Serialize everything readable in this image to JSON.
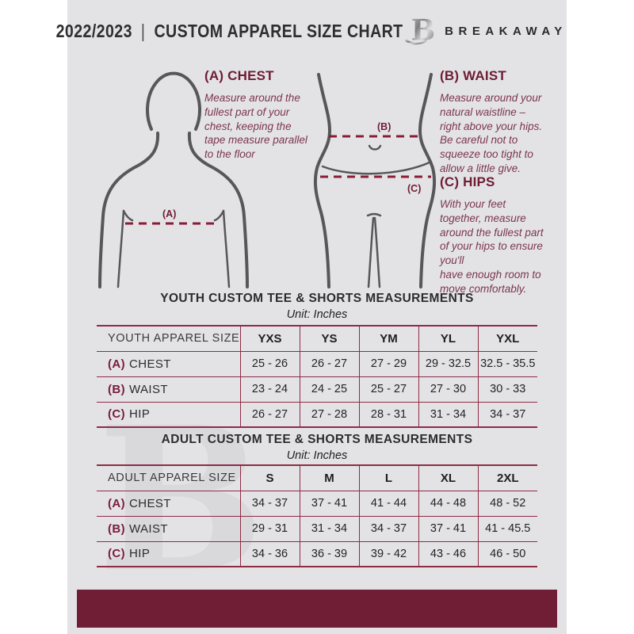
{
  "header": {
    "season": "2022/2023",
    "separator": "|",
    "title": "CUSTOM APPAREL SIZE CHART",
    "logo_letter": "B",
    "brand": "BREAKAWAY"
  },
  "diagrams": {
    "chest_label": "(A)",
    "waist_label": "(B)",
    "hip_label": "(C)"
  },
  "instructions": [
    {
      "heading": "(A) CHEST",
      "body": "Measure around the\nfullest part of your\nchest, keeping the\ntape measure parallel\nto the floor"
    },
    {
      "heading": "(B) WAIST",
      "body": "Measure around your\nnatural waistline –\nright above your hips.\nBe careful not to\nsqueeze too tight to\nallow a little give."
    },
    {
      "heading": "(C) HIPS",
      "body": "With your feet\ntogether, measure\naround the fullest part\nof your hips to ensure\nyou'll\nhave enough room to\nmove comfortably."
    }
  ],
  "youth": {
    "title": "YOUTH CUSTOM TEE & SHORTS MEASUREMENTS",
    "unit": "Unit: Inches",
    "table": {
      "header": "YOUTH APPAREL SIZE",
      "sizes": [
        "YXS",
        "YS",
        "YM",
        "YL",
        "YXL"
      ],
      "rows": [
        {
          "key": "(A)",
          "label": "CHEST",
          "values": [
            "25 - 26",
            "26 - 27",
            "27 - 29",
            "29 - 32.5",
            "32.5 - 35.5"
          ]
        },
        {
          "key": "(B)",
          "label": "WAIST",
          "values": [
            "23 - 24",
            "24 - 25",
            "25 - 27",
            "27 - 30",
            "30 - 33"
          ]
        },
        {
          "key": "(C)",
          "label": "HIP",
          "values": [
            "26 - 27",
            "27 - 28",
            "28 - 31",
            "31 - 34",
            "34 - 37"
          ]
        }
      ]
    }
  },
  "adult": {
    "title": "ADULT CUSTOM TEE & SHORTS MEASUREMENTS",
    "unit": "Unit: Inches",
    "table": {
      "header": "ADULT APPAREL SIZE",
      "sizes": [
        "S",
        "M",
        "L",
        "XL",
        "2XL"
      ],
      "rows": [
        {
          "key": "(A)",
          "label": "CHEST",
          "values": [
            "34 - 37",
            "37 - 41",
            "41 - 44",
            "44 - 48",
            "48 - 52"
          ]
        },
        {
          "key": "(B)",
          "label": "WAIST",
          "values": [
            "29 - 31",
            "31 - 34",
            "34 - 37",
            "37 - 41",
            "41 - 45.5"
          ]
        },
        {
          "key": "(C)",
          "label": "HIP",
          "values": [
            "34 - 36",
            "36 - 39",
            "39 - 42",
            "43 - 46",
            "46 - 50"
          ]
        }
      ]
    }
  },
  "watermark": {
    "letter": "B"
  },
  "colors": {
    "maroon": "#6f1e35",
    "table_border": "#8e2b45",
    "dashed_line": "#8a1d36",
    "page_background": "#e3e3e5",
    "figure_gray": "#57575a"
  }
}
